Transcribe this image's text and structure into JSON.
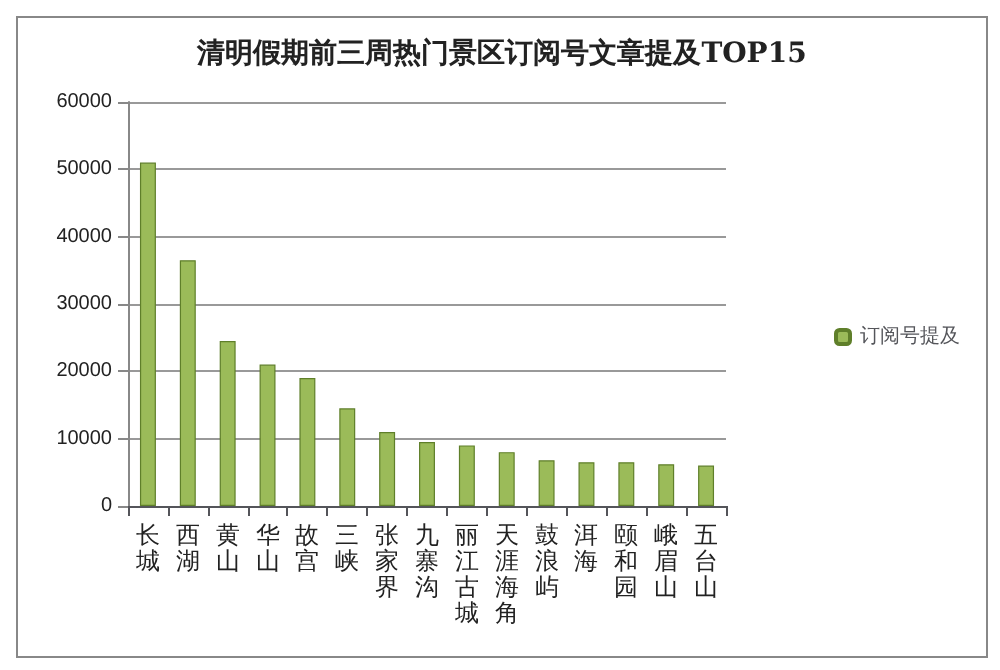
{
  "chart_data": {
    "type": "bar",
    "title": "清明假期前三周热门景区订阅号文章提及TOP15",
    "categories": [
      "长城",
      "西湖",
      "黄山",
      "华山",
      "故宫",
      "三峡",
      "张家界",
      "九寨沟",
      "丽江古城",
      "天涯海角",
      "鼓浪屿",
      "洱海",
      "颐和园",
      "峨眉山",
      "五台山"
    ],
    "series": [
      {
        "name": "订阅号提及",
        "color": "#9bbb59",
        "values": [
          51000,
          36500,
          24500,
          21000,
          19000,
          14500,
          11000,
          9500,
          9000,
          8000,
          6800,
          6500,
          6500,
          6200,
          6000
        ]
      }
    ],
    "ylim": [
      0,
      60000
    ],
    "yticks": [
      0,
      10000,
      20000,
      30000,
      40000,
      50000,
      60000
    ],
    "grid": "y",
    "legend": "right"
  }
}
